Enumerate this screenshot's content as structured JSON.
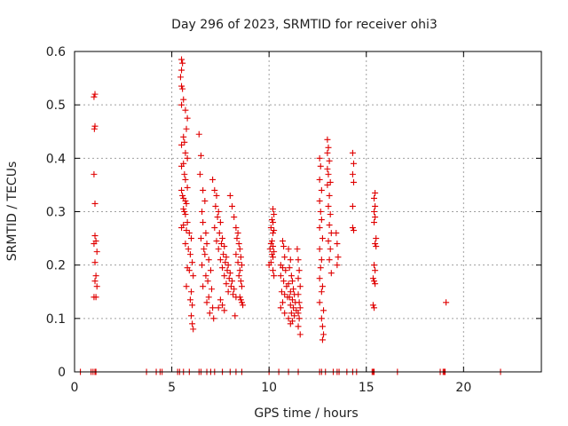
{
  "chart_data": {
    "type": "scatter",
    "title": "Day 296 of 2023, SRMTID for receiver ohi3",
    "xlabel": "GPS time / hours",
    "ylabel": "SRMTID / TECUs",
    "xlim": [
      0,
      24
    ],
    "ylim": [
      0,
      0.6
    ],
    "xticks": [
      0,
      5,
      10,
      15,
      20
    ],
    "yticks": [
      0,
      0.1,
      0.2,
      0.3,
      0.4,
      0.5,
      0.6
    ],
    "xtick_labels": [
      "0",
      "5",
      "10",
      "15",
      "20"
    ],
    "ytick_labels": [
      "0",
      "0.1",
      "0.2",
      "0.3",
      "0.4",
      "0.5",
      "0.6"
    ],
    "grid": true,
    "marker": "plus",
    "series": [
      {
        "name": "SRMTID",
        "color": "#e00000",
        "points": [
          [
            0.3,
            0
          ],
          [
            0.85,
            0
          ],
          [
            0.95,
            0
          ],
          [
            1.05,
            0
          ],
          [
            1.1,
            0
          ],
          [
            1.0,
            0.515
          ],
          [
            1.05,
            0.52
          ],
          [
            1.02,
            0.455
          ],
          [
            1.05,
            0.46
          ],
          [
            1.0,
            0.37
          ],
          [
            1.05,
            0.315
          ],
          [
            1.05,
            0.255
          ],
          [
            1.1,
            0.245
          ],
          [
            1.0,
            0.24
          ],
          [
            1.15,
            0.225
          ],
          [
            1.05,
            0.205
          ],
          [
            1.1,
            0.18
          ],
          [
            1.05,
            0.17
          ],
          [
            1.15,
            0.16
          ],
          [
            1.0,
            0.14
          ],
          [
            1.1,
            0.14
          ],
          [
            3.7,
            0
          ],
          [
            4.2,
            0
          ],
          [
            4.4,
            0
          ],
          [
            4.5,
            0
          ],
          [
            5.3,
            0
          ],
          [
            5.4,
            0
          ],
          [
            5.6,
            0
          ],
          [
            5.9,
            0
          ],
          [
            6.4,
            0
          ],
          [
            6.5,
            0
          ],
          [
            6.8,
            0
          ],
          [
            7.0,
            0
          ],
          [
            7.2,
            0
          ],
          [
            7.6,
            0
          ],
          [
            8.0,
            0
          ],
          [
            8.3,
            0
          ],
          [
            8.6,
            0
          ],
          [
            5.5,
            0.585
          ],
          [
            5.55,
            0.578
          ],
          [
            5.5,
            0.565
          ],
          [
            5.45,
            0.552
          ],
          [
            5.5,
            0.535
          ],
          [
            5.55,
            0.53
          ],
          [
            5.6,
            0.51
          ],
          [
            5.5,
            0.5
          ],
          [
            5.7,
            0.49
          ],
          [
            5.8,
            0.475
          ],
          [
            5.75,
            0.455
          ],
          [
            5.6,
            0.44
          ],
          [
            5.5,
            0.425
          ],
          [
            5.65,
            0.43
          ],
          [
            5.7,
            0.41
          ],
          [
            5.8,
            0.4
          ],
          [
            5.6,
            0.39
          ],
          [
            5.5,
            0.385
          ],
          [
            5.65,
            0.37
          ],
          [
            5.7,
            0.36
          ],
          [
            5.8,
            0.345
          ],
          [
            5.5,
            0.34
          ],
          [
            5.55,
            0.33
          ],
          [
            5.6,
            0.325
          ],
          [
            5.7,
            0.32
          ],
          [
            5.75,
            0.315
          ],
          [
            5.6,
            0.305
          ],
          [
            5.65,
            0.3
          ],
          [
            5.7,
            0.295
          ],
          [
            5.8,
            0.28
          ],
          [
            5.6,
            0.275
          ],
          [
            5.5,
            0.27
          ],
          [
            5.75,
            0.265
          ],
          [
            5.9,
            0.26
          ],
          [
            6.0,
            0.25
          ],
          [
            5.7,
            0.24
          ],
          [
            5.85,
            0.23
          ],
          [
            5.95,
            0.22
          ],
          [
            6.05,
            0.205
          ],
          [
            5.8,
            0.195
          ],
          [
            5.9,
            0.19
          ],
          [
            6.1,
            0.18
          ],
          [
            5.75,
            0.16
          ],
          [
            6.0,
            0.15
          ],
          [
            5.95,
            0.135
          ],
          [
            6.05,
            0.125
          ],
          [
            6.0,
            0.105
          ],
          [
            6.05,
            0.09
          ],
          [
            6.1,
            0.08
          ],
          [
            6.4,
            0.445
          ],
          [
            6.5,
            0.405
          ],
          [
            6.45,
            0.37
          ],
          [
            6.6,
            0.34
          ],
          [
            6.55,
            0.3
          ],
          [
            6.7,
            0.32
          ],
          [
            6.6,
            0.28
          ],
          [
            6.75,
            0.26
          ],
          [
            6.5,
            0.25
          ],
          [
            6.8,
            0.24
          ],
          [
            6.65,
            0.23
          ],
          [
            6.7,
            0.22
          ],
          [
            6.9,
            0.21
          ],
          [
            6.55,
            0.2
          ],
          [
            7.0,
            0.19
          ],
          [
            6.75,
            0.18
          ],
          [
            6.85,
            0.17
          ],
          [
            6.6,
            0.16
          ],
          [
            7.05,
            0.155
          ],
          [
            6.9,
            0.14
          ],
          [
            6.8,
            0.13
          ],
          [
            7.1,
            0.12
          ],
          [
            6.95,
            0.11
          ],
          [
            7.15,
            0.1
          ],
          [
            7.1,
            0.36
          ],
          [
            7.2,
            0.34
          ],
          [
            7.3,
            0.33
          ],
          [
            7.25,
            0.31
          ],
          [
            7.4,
            0.3
          ],
          [
            7.35,
            0.29
          ],
          [
            7.5,
            0.28
          ],
          [
            7.2,
            0.27
          ],
          [
            7.45,
            0.26
          ],
          [
            7.6,
            0.25
          ],
          [
            7.3,
            0.245
          ],
          [
            7.55,
            0.24
          ],
          [
            7.7,
            0.235
          ],
          [
            7.4,
            0.23
          ],
          [
            7.65,
            0.22
          ],
          [
            7.8,
            0.215
          ],
          [
            7.5,
            0.21
          ],
          [
            7.75,
            0.205
          ],
          [
            7.9,
            0.2
          ],
          [
            7.6,
            0.195
          ],
          [
            7.85,
            0.19
          ],
          [
            8.0,
            0.185
          ],
          [
            7.7,
            0.18
          ],
          [
            7.95,
            0.175
          ],
          [
            8.1,
            0.17
          ],
          [
            7.8,
            0.165
          ],
          [
            8.05,
            0.16
          ],
          [
            8.2,
            0.155
          ],
          [
            7.9,
            0.15
          ],
          [
            8.15,
            0.145
          ],
          [
            8.3,
            0.14
          ],
          [
            7.5,
            0.135
          ],
          [
            7.6,
            0.125
          ],
          [
            7.4,
            0.12
          ],
          [
            7.7,
            0.115
          ],
          [
            8.25,
            0.105
          ],
          [
            8.0,
            0.33
          ],
          [
            8.1,
            0.31
          ],
          [
            8.2,
            0.29
          ],
          [
            8.3,
            0.27
          ],
          [
            8.4,
            0.26
          ],
          [
            8.35,
            0.25
          ],
          [
            8.45,
            0.24
          ],
          [
            8.5,
            0.23
          ],
          [
            8.3,
            0.22
          ],
          [
            8.55,
            0.215
          ],
          [
            8.4,
            0.205
          ],
          [
            8.6,
            0.2
          ],
          [
            8.5,
            0.19
          ],
          [
            8.45,
            0.18
          ],
          [
            8.55,
            0.17
          ],
          [
            8.6,
            0.16
          ],
          [
            8.5,
            0.14
          ],
          [
            8.55,
            0.135
          ],
          [
            8.6,
            0.13
          ],
          [
            8.65,
            0.125
          ],
          [
            10.0,
            0
          ],
          [
            10.5,
            0
          ],
          [
            11.0,
            0
          ],
          [
            11.5,
            0
          ],
          [
            10.2,
            0.305
          ],
          [
            10.25,
            0.295
          ],
          [
            10.15,
            0.285
          ],
          [
            10.2,
            0.28
          ],
          [
            10.1,
            0.27
          ],
          [
            10.25,
            0.265
          ],
          [
            10.2,
            0.26
          ],
          [
            10.15,
            0.245
          ],
          [
            10.1,
            0.24
          ],
          [
            10.2,
            0.235
          ],
          [
            10.05,
            0.23
          ],
          [
            10.25,
            0.225
          ],
          [
            10.15,
            0.22
          ],
          [
            10.2,
            0.215
          ],
          [
            10.1,
            0.205
          ],
          [
            10.0,
            0.2
          ],
          [
            10.2,
            0.19
          ],
          [
            10.25,
            0.18
          ],
          [
            10.7,
            0.245
          ],
          [
            10.75,
            0.235
          ],
          [
            10.8,
            0.215
          ],
          [
            10.6,
            0.2
          ],
          [
            10.7,
            0.195
          ],
          [
            10.85,
            0.19
          ],
          [
            10.6,
            0.18
          ],
          [
            10.75,
            0.17
          ],
          [
            10.9,
            0.16
          ],
          [
            10.65,
            0.15
          ],
          [
            10.8,
            0.145
          ],
          [
            10.95,
            0.14
          ],
          [
            10.7,
            0.13
          ],
          [
            10.6,
            0.12
          ],
          [
            10.8,
            0.11
          ],
          [
            11.0,
            0.23
          ],
          [
            11.1,
            0.21
          ],
          [
            11.05,
            0.195
          ],
          [
            11.15,
            0.18
          ],
          [
            11.2,
            0.17
          ],
          [
            11.0,
            0.165
          ],
          [
            11.25,
            0.155
          ],
          [
            11.1,
            0.15
          ],
          [
            11.3,
            0.145
          ],
          [
            11.05,
            0.14
          ],
          [
            11.2,
            0.135
          ],
          [
            11.35,
            0.13
          ],
          [
            11.1,
            0.125
          ],
          [
            11.25,
            0.12
          ],
          [
            11.4,
            0.115
          ],
          [
            11.15,
            0.11
          ],
          [
            11.3,
            0.105
          ],
          [
            11.0,
            0.1
          ],
          [
            11.2,
            0.095
          ],
          [
            11.1,
            0.09
          ],
          [
            11.45,
            0.23
          ],
          [
            11.5,
            0.21
          ],
          [
            11.55,
            0.19
          ],
          [
            11.5,
            0.175
          ],
          [
            11.6,
            0.16
          ],
          [
            11.5,
            0.145
          ],
          [
            11.55,
            0.13
          ],
          [
            11.6,
            0.12
          ],
          [
            11.5,
            0.11
          ],
          [
            11.55,
            0.1
          ],
          [
            11.5,
            0.085
          ],
          [
            11.6,
            0.07
          ],
          [
            12.6,
            0
          ],
          [
            12.7,
            0
          ],
          [
            12.9,
            0
          ],
          [
            13.3,
            0
          ],
          [
            13.5,
            0
          ],
          [
            13.6,
            0
          ],
          [
            14.0,
            0
          ],
          [
            14.3,
            0
          ],
          [
            14.5,
            0
          ],
          [
            12.6,
            0.4
          ],
          [
            12.65,
            0.385
          ],
          [
            12.6,
            0.36
          ],
          [
            12.7,
            0.34
          ],
          [
            12.6,
            0.32
          ],
          [
            12.65,
            0.3
          ],
          [
            12.7,
            0.285
          ],
          [
            12.6,
            0.27
          ],
          [
            12.75,
            0.25
          ],
          [
            12.6,
            0.23
          ],
          [
            12.7,
            0.21
          ],
          [
            12.65,
            0.195
          ],
          [
            12.6,
            0.175
          ],
          [
            12.75,
            0.16
          ],
          [
            12.7,
            0.15
          ],
          [
            12.6,
            0.13
          ],
          [
            12.8,
            0.115
          ],
          [
            12.7,
            0.1
          ],
          [
            12.75,
            0.085
          ],
          [
            12.8,
            0.07
          ],
          [
            12.75,
            0.06
          ],
          [
            13.0,
            0.435
          ],
          [
            13.05,
            0.42
          ],
          [
            13.0,
            0.41
          ],
          [
            13.1,
            0.395
          ],
          [
            13.0,
            0.38
          ],
          [
            13.05,
            0.37
          ],
          [
            13.15,
            0.355
          ],
          [
            13.0,
            0.35
          ],
          [
            13.1,
            0.33
          ],
          [
            13.05,
            0.31
          ],
          [
            13.15,
            0.295
          ],
          [
            13.1,
            0.275
          ],
          [
            13.2,
            0.26
          ],
          [
            13.05,
            0.245
          ],
          [
            13.15,
            0.23
          ],
          [
            13.1,
            0.21
          ],
          [
            13.2,
            0.185
          ],
          [
            13.45,
            0.26
          ],
          [
            13.5,
            0.24
          ],
          [
            13.55,
            0.215
          ],
          [
            13.5,
            0.2
          ],
          [
            14.3,
            0.41
          ],
          [
            14.35,
            0.39
          ],
          [
            14.3,
            0.37
          ],
          [
            14.35,
            0.355
          ],
          [
            14.3,
            0.31
          ],
          [
            14.3,
            0.27
          ],
          [
            14.35,
            0.265
          ],
          [
            15.3,
            0
          ],
          [
            15.35,
            0
          ],
          [
            15.4,
            0
          ],
          [
            16.6,
            0
          ],
          [
            15.45,
            0.335
          ],
          [
            15.4,
            0.325
          ],
          [
            15.45,
            0.31
          ],
          [
            15.4,
            0.3
          ],
          [
            15.45,
            0.29
          ],
          [
            15.4,
            0.28
          ],
          [
            15.5,
            0.25
          ],
          [
            15.45,
            0.24
          ],
          [
            15.5,
            0.235
          ],
          [
            15.4,
            0.2
          ],
          [
            15.45,
            0.19
          ],
          [
            15.35,
            0.175
          ],
          [
            15.4,
            0.17
          ],
          [
            15.45,
            0.165
          ],
          [
            15.35,
            0.125
          ],
          [
            15.4,
            0.12
          ],
          [
            18.8,
            0
          ],
          [
            18.95,
            0
          ],
          [
            19.0,
            0
          ],
          [
            19.05,
            0
          ],
          [
            21.9,
            0
          ],
          [
            19.1,
            0.13
          ]
        ]
      }
    ]
  }
}
